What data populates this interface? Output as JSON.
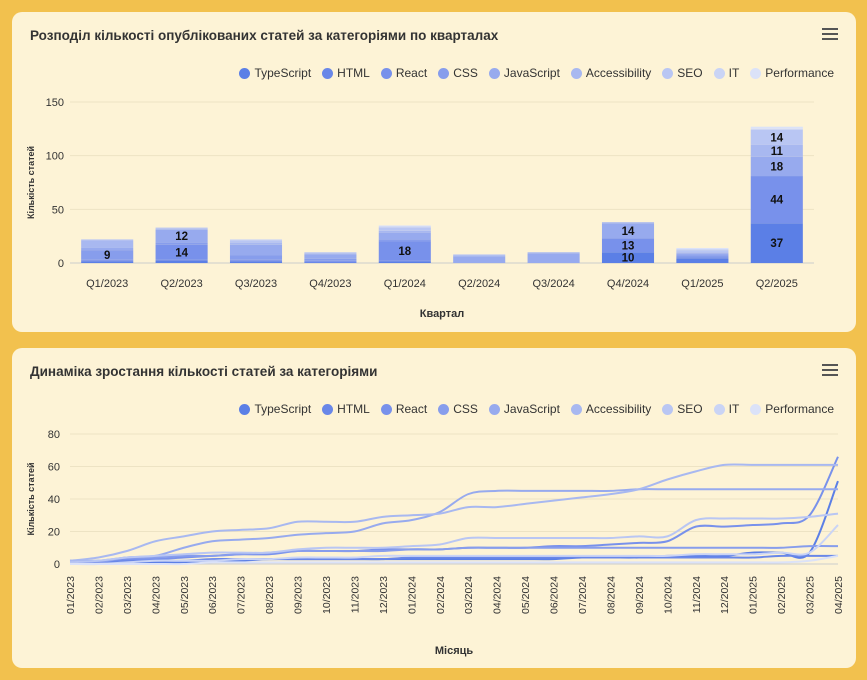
{
  "charts": [
    {
      "title": "Розподіл кількості опублікованих статей за категоріями по кварталах",
      "xlabel": "Квартал",
      "ylabel": "Кількість статей"
    },
    {
      "title": "Динаміка зростання кількості статей за категоріями",
      "xlabel": "Місяць",
      "ylabel": "Кількість статей"
    }
  ],
  "legend": [
    "TypeScript",
    "HTML",
    "React",
    "CSS",
    "JavaScript",
    "Accessibility",
    "SEO",
    "IT",
    "Performance"
  ],
  "series_colors": [
    "#5b7fe6",
    "#6987e8",
    "#7891eb",
    "#879dec",
    "#97aaee",
    "#a8b8f0",
    "#b9c6f3",
    "#cad4f5",
    "#dbe2f8"
  ],
  "chart_data": [
    {
      "type": "bar",
      "stacked": true,
      "title": "Розподіл кількості опублікованих статей за категоріями по кварталах",
      "xlabel": "Квартал",
      "ylabel": "Кількість статей",
      "ylim": [
        0,
        150
      ],
      "yticks": [
        0,
        50,
        100,
        150
      ],
      "categories": [
        "Q1/2023",
        "Q2/2023",
        "Q3/2023",
        "Q4/2023",
        "Q1/2024",
        "Q2/2024",
        "Q3/2024",
        "Q4/2024",
        "Q1/2025",
        "Q2/2025"
      ],
      "series": [
        {
          "name": "TypeScript",
          "values": [
            1,
            2,
            1,
            0,
            1,
            0,
            0,
            10,
            4,
            37
          ]
        },
        {
          "name": "HTML",
          "values": [
            1,
            1,
            1,
            1,
            1,
            0,
            0,
            0,
            1,
            0
          ]
        },
        {
          "name": "React",
          "values": [
            1,
            14,
            1,
            1,
            18,
            0,
            0,
            13,
            1,
            44
          ]
        },
        {
          "name": "CSS",
          "values": [
            9,
            2,
            4,
            2,
            2,
            0,
            0,
            0,
            1,
            0
          ]
        },
        {
          "name": "JavaScript",
          "values": [
            2,
            12,
            10,
            4,
            6,
            6,
            9,
            14,
            2,
            18
          ]
        },
        {
          "name": "Accessibility",
          "values": [
            7,
            1,
            2,
            1,
            2,
            1,
            1,
            1,
            1,
            11
          ]
        },
        {
          "name": "SEO",
          "values": [
            1,
            1,
            2,
            1,
            3,
            1,
            0,
            0,
            2,
            14
          ]
        },
        {
          "name": "IT",
          "values": [
            0,
            0,
            1,
            0,
            1,
            0,
            0,
            0,
            1,
            1
          ]
        },
        {
          "name": "Performance",
          "values": [
            0,
            0,
            0,
            0,
            1,
            0,
            0,
            0,
            1,
            2
          ]
        }
      ],
      "data_labels": [
        {
          "category": "Q1/2023",
          "series": "CSS",
          "text": "9"
        },
        {
          "category": "Q2/2023",
          "series": "React",
          "text": "14"
        },
        {
          "category": "Q2/2023",
          "series": "JavaScript",
          "text": "12"
        },
        {
          "category": "Q1/2024",
          "series": "React",
          "text": "18"
        },
        {
          "category": "Q4/2024",
          "series": "TypeScript",
          "text": "10"
        },
        {
          "category": "Q4/2024",
          "series": "React",
          "text": "13"
        },
        {
          "category": "Q4/2024",
          "series": "JavaScript",
          "text": "14"
        },
        {
          "category": "Q2/2025",
          "series": "TypeScript",
          "text": "37"
        },
        {
          "category": "Q2/2025",
          "series": "React",
          "text": "44"
        },
        {
          "category": "Q2/2025",
          "series": "JavaScript",
          "text": "18"
        },
        {
          "category": "Q2/2025",
          "series": "Accessibility",
          "text": "11"
        },
        {
          "category": "Q2/2025",
          "series": "SEO",
          "text": "14"
        }
      ]
    },
    {
      "type": "line",
      "title": "Динаміка зростання кількості статей за категоріями",
      "xlabel": "Місяць",
      "ylabel": "Кількість статей",
      "ylim": [
        0,
        80
      ],
      "yticks": [
        0,
        20,
        40,
        60,
        80
      ],
      "x": [
        "01/2023",
        "02/2023",
        "03/2023",
        "04/2023",
        "05/2023",
        "06/2023",
        "07/2023",
        "08/2023",
        "09/2023",
        "10/2023",
        "11/2023",
        "12/2023",
        "01/2024",
        "02/2024",
        "03/2024",
        "04/2024",
        "05/2024",
        "06/2024",
        "07/2024",
        "08/2024",
        "09/2024",
        "10/2024",
        "11/2024",
        "12/2024",
        "01/2025",
        "02/2025",
        "03/2025",
        "04/2025"
      ],
      "series": [
        {
          "name": "TypeScript",
          "values": [
            1,
            1,
            1,
            1,
            1,
            2,
            2,
            3,
            3,
            3,
            3,
            3,
            3,
            3,
            3,
            3,
            3,
            3,
            4,
            4,
            4,
            5,
            5,
            5,
            7,
            7,
            7,
            51
          ]
        },
        {
          "name": "HTML",
          "values": [
            1,
            1,
            2,
            2,
            2,
            3,
            3,
            3,
            3,
            3,
            3,
            3,
            4,
            4,
            4,
            4,
            4,
            4,
            4,
            4,
            4,
            4,
            4,
            4,
            4,
            5,
            5,
            5
          ]
        },
        {
          "name": "React",
          "values": [
            2,
            2,
            3,
            3,
            4,
            5,
            6,
            6,
            8,
            8,
            8,
            9,
            9,
            9,
            10,
            10,
            10,
            11,
            11,
            12,
            13,
            14,
            23,
            23,
            24,
            25,
            30,
            66
          ]
        },
        {
          "name": "CSS",
          "values": [
            1,
            1,
            4,
            4,
            5,
            5,
            6,
            7,
            8,
            8,
            8,
            8,
            9,
            9,
            10,
            10,
            10,
            10,
            10,
            10,
            10,
            10,
            10,
            10,
            10,
            10,
            11,
            11
          ]
        },
        {
          "name": "JavaScript",
          "values": [
            2,
            2,
            4,
            5,
            10,
            14,
            15,
            16,
            18,
            19,
            20,
            25,
            27,
            32,
            43,
            45,
            45,
            45,
            45,
            45,
            46,
            46,
            46,
            46,
            46,
            46,
            46,
            46
          ]
        },
        {
          "name": "Accessibility",
          "values": [
            2,
            4,
            8,
            14,
            17,
            20,
            21,
            22,
            26,
            26,
            26,
            29,
            30,
            31,
            35,
            35,
            37,
            39,
            41,
            43,
            46,
            52,
            57,
            61,
            61,
            61,
            61,
            61
          ]
        },
        {
          "name": "SEO",
          "values": [
            1,
            2,
            4,
            5,
            6,
            7,
            7,
            7,
            9,
            10,
            10,
            10,
            11,
            12,
            16,
            16,
            16,
            16,
            16,
            16,
            17,
            17,
            27,
            28,
            28,
            28,
            29,
            31
          ]
        },
        {
          "name": "IT",
          "values": [
            0,
            0,
            1,
            2,
            2,
            2,
            3,
            3,
            4,
            4,
            4,
            5,
            5,
            5,
            5,
            5,
            5,
            5,
            5,
            5,
            5,
            5,
            6,
            6,
            6,
            7,
            7,
            24
          ]
        },
        {
          "name": "Performance",
          "values": [
            0,
            0,
            0,
            0,
            0,
            1,
            1,
            1,
            1,
            1,
            1,
            1,
            1,
            1,
            1,
            1,
            1,
            1,
            1,
            1,
            1,
            1,
            1,
            1,
            1,
            1,
            2,
            5
          ]
        }
      ]
    }
  ]
}
